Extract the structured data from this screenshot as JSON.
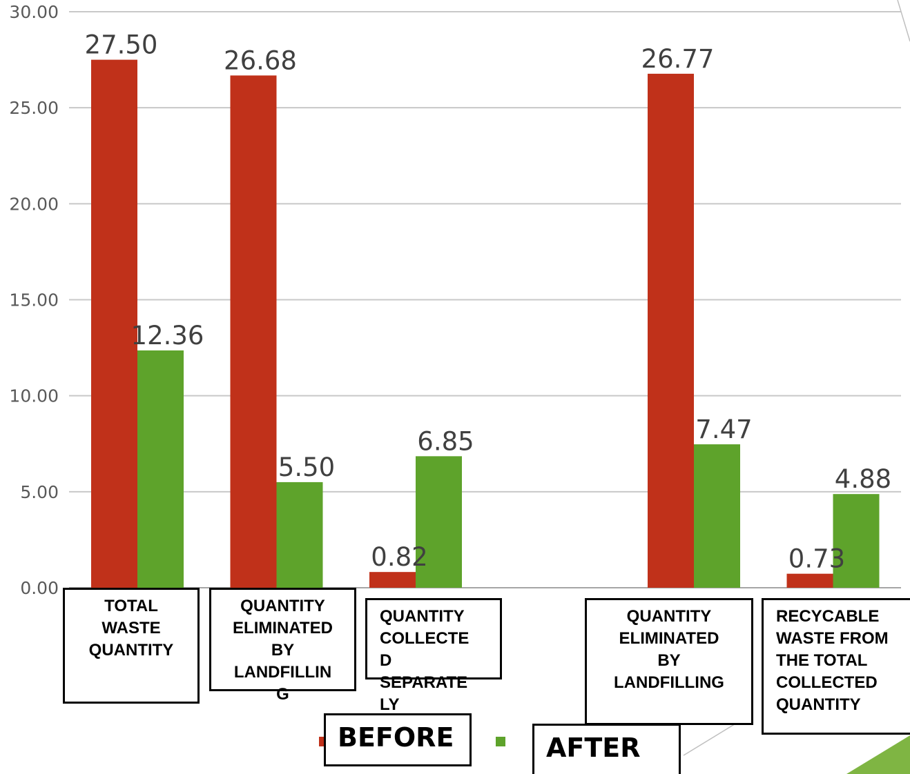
{
  "chart_data": {
    "type": "bar",
    "categories": [
      "TOTAL WASTE QUANTITY",
      "QUANTITY ELIMINATED BY LANDFILLIN G",
      "QUANTITY COLLECTE D SEPARATE LY",
      "",
      "QUANTITY ELIMINATED BY LANDFILLING",
      "RECYCABLE WASTE FROM THE TOTAL COLLECTED QUANTITY"
    ],
    "category_boxes": [
      "TOTAL\nWASTE\nQUANTITY",
      "QUANTITY\nELIMINATED\nBY\nLANDFILLIN\nG",
      "QUANTITY\nCOLLECTE\nD\nSEPARATE\nLY",
      "QUANTITY\nELIMINATED\nBY\nLANDFILLING",
      "RECYCABLE\nWASTE FROM\nTHE TOTAL\nCOLLECTED\nQUANTITY"
    ],
    "series": [
      {
        "color": "#c0311a",
        "values": [
          27.5,
          26.68,
          0.82,
          null,
          26.77,
          0.73
        ]
      },
      {
        "color": "#5ea32b",
        "values": [
          12.36,
          5.5,
          6.85,
          null,
          7.47,
          4.88
        ]
      }
    ],
    "data_labels": [
      [
        "27.50",
        "26.68",
        "0.82",
        null,
        "26.77",
        "0.73"
      ],
      [
        "12.36",
        "5.50",
        "6.85",
        null,
        "7.47",
        "4.88"
      ]
    ],
    "yticks": [
      "0.00",
      "5.00",
      "10.00",
      "15.00",
      "20.00",
      "25.00",
      "30.00"
    ],
    "ylim": [
      0,
      30
    ],
    "grid": true,
    "legend": {
      "placement": "bottom",
      "items": [
        "BEFORE",
        "AFTER"
      ]
    }
  }
}
